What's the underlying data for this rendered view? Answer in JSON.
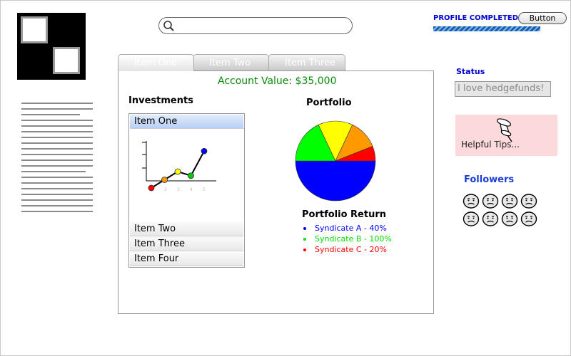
{
  "header": {
    "search": {
      "value": "",
      "placeholder": ""
    },
    "profile": {
      "label": "PROFILE COMPLETED",
      "progress_percent": 100
    },
    "button_label": "Button"
  },
  "tabs": [
    {
      "label": "Item One",
      "active": true
    },
    {
      "label": "Item Two",
      "active": false
    },
    {
      "label": "Item Three",
      "active": false
    }
  ],
  "main": {
    "account_value": "Account Value: $35,000",
    "investments": {
      "title": "Investments",
      "items": [
        "Item One",
        "Item Two",
        "Item Three",
        "Item Four"
      ],
      "selected": "Item One"
    },
    "portfolio": {
      "title": "Portfolio",
      "return_title": "Portfolio Return",
      "legend": [
        {
          "label": "Syndicate A - 40%",
          "color": "#0000ff"
        },
        {
          "label": "Syndicate B - 100%",
          "color": "#00dd00"
        },
        {
          "label": "Syndicate C - 20%",
          "color": "#ff0000"
        }
      ]
    }
  },
  "sidebar": {
    "status_label": "Status",
    "status_value": "I love hedgefunds!",
    "tips_label": "Helpful Tips...",
    "followers_label": "Followers",
    "followers_count": 8
  },
  "chart_data": [
    {
      "type": "pie",
      "title": "",
      "slices": [
        {
          "value": 50,
          "color": "#0000ff"
        },
        {
          "value": 18,
          "color": "#00ff00"
        },
        {
          "value": 14,
          "color": "#ffff00"
        },
        {
          "value": 12,
          "color": "#ff9900"
        },
        {
          "value": 6,
          "color": "#ff0000"
        }
      ]
    },
    {
      "type": "line",
      "title": "",
      "xlabel": "",
      "ylabel": "",
      "series": [
        {
          "x": [
            0,
            1,
            2,
            3,
            4
          ],
          "values": [
            0,
            1,
            2,
            1.5,
            4.5
          ],
          "point_colors": [
            "#ff0000",
            "#ff9900",
            "#ffff00",
            "#00cc00",
            "#0000ff"
          ]
        }
      ]
    }
  ],
  "colors": {
    "accent_blue": "#0000cc",
    "account_green": "#0a8a0a",
    "tips_background": "#fcd9da"
  },
  "icons": {
    "search": "search-icon",
    "logo": "logo-icon",
    "tips": "pushpin-icon",
    "follower": "sad-face-icon"
  }
}
